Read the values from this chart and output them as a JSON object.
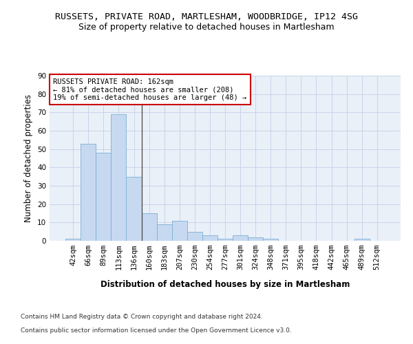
{
  "title_line1": "RUSSETS, PRIVATE ROAD, MARTLESHAM, WOODBRIDGE, IP12 4SG",
  "title_line2": "Size of property relative to detached houses in Martlesham",
  "xlabel": "Distribution of detached houses by size in Martlesham",
  "ylabel": "Number of detached properties",
  "categories": [
    "42sqm",
    "66sqm",
    "89sqm",
    "113sqm",
    "136sqm",
    "160sqm",
    "183sqm",
    "207sqm",
    "230sqm",
    "254sqm",
    "277sqm",
    "301sqm",
    "324sqm",
    "348sqm",
    "371sqm",
    "395sqm",
    "418sqm",
    "442sqm",
    "465sqm",
    "489sqm",
    "512sqm"
  ],
  "values": [
    1,
    53,
    48,
    69,
    35,
    15,
    9,
    11,
    5,
    3,
    1,
    3,
    2,
    1,
    0,
    0,
    0,
    0,
    0,
    1,
    0
  ],
  "bar_color": "#c6d9f0",
  "bar_edge_color": "#7bafd4",
  "highlight_index": 4,
  "highlight_line_color": "#444444",
  "ylim": [
    0,
    90
  ],
  "yticks": [
    0,
    10,
    20,
    30,
    40,
    50,
    60,
    70,
    80,
    90
  ],
  "annotation_box_text": "RUSSETS PRIVATE ROAD: 162sqm\n← 81% of detached houses are smaller (208)\n19% of semi-detached houses are larger (48) →",
  "annotation_box_color": "#ffffff",
  "annotation_box_edge_color": "#cc0000",
  "footer_line1": "Contains HM Land Registry data © Crown copyright and database right 2024.",
  "footer_line2": "Contains public sector information licensed under the Open Government Licence v3.0.",
  "bg_color": "#ffffff",
  "plot_bg_color": "#eaf0f8",
  "grid_color": "#c8d4e8",
  "title_fontsize": 9.5,
  "subtitle_fontsize": 9,
  "axis_label_fontsize": 8.5,
  "tick_fontsize": 7.5,
  "annotation_fontsize": 7.5,
  "footer_fontsize": 6.5
}
